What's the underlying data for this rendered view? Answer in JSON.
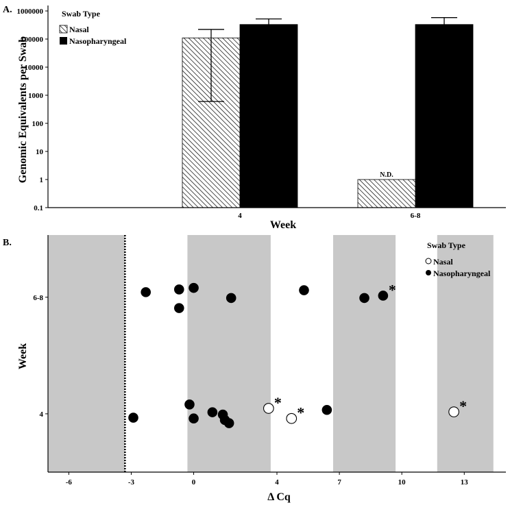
{
  "colors": {
    "bar_black": "#000000",
    "hatch": "#000000",
    "band": "#c8c8c8",
    "marker_face_nasal": "#ffffff",
    "marker_face_np": "#000000"
  },
  "chart_data": [
    {
      "type": "bar",
      "panel_label": "A.",
      "xlabel": "Week",
      "ylabel": "Genomic Equivalents per Swab",
      "yscale": "log",
      "ylim": [
        0.1,
        1000000
      ],
      "yticks": [
        "0.1",
        "1",
        "10",
        "100",
        "1000",
        "10000",
        "100000",
        "1000000"
      ],
      "categories": [
        "4",
        "6-8"
      ],
      "legend": {
        "title": "Swab Type",
        "position": "top-left"
      },
      "series": [
        {
          "name": "Nasal",
          "style": "hatched",
          "values": [
            110000,
            1
          ],
          "error_high": [
            220000,
            null
          ],
          "error_low": [
            600,
            null
          ],
          "labels": [
            "",
            "N.D."
          ]
        },
        {
          "name": "Nasopharyngeal",
          "style": "solid",
          "values": [
            330000,
            330000
          ],
          "error_high": [
            520000,
            580000
          ],
          "error_low": [
            null,
            null
          ],
          "labels": [
            "",
            ""
          ]
        }
      ]
    },
    {
      "type": "scatter",
      "panel_label": "B.",
      "xlabel": "Δ Cq",
      "ylabel": "Week",
      "xlim": [
        -7,
        15
      ],
      "xticks": [
        "-6",
        "-3",
        "0",
        "4",
        "7",
        "10",
        "13"
      ],
      "categories": [
        "4",
        "6-8"
      ],
      "shaded_bands": [
        [
          -7,
          -3.3
        ],
        [
          -0.3,
          3.7
        ],
        [
          6.7,
          9.7
        ],
        [
          11.7,
          14.4
        ]
      ],
      "reference_line_x": -3.3,
      "legend": {
        "title": "Swab Type",
        "position": "top-right"
      },
      "series": [
        {
          "name": "Nasal",
          "marker": "open-circle",
          "points": [
            {
              "x": 3.6,
              "y": 4.14,
              "flag": "*"
            },
            {
              "x": 4.7,
              "y": 3.88,
              "flag": "*"
            },
            {
              "x": 12.5,
              "y": 4.05,
              "flag": "*"
            }
          ]
        },
        {
          "name": "Nasopharyngeal",
          "marker": "filled-circle",
          "points": [
            {
              "x": -2.3,
              "y": 7.13,
              "flag": ""
            },
            {
              "x": -0.7,
              "y": 7.2,
              "flag": ""
            },
            {
              "x": 0.0,
              "y": 7.24,
              "flag": ""
            },
            {
              "x": -0.7,
              "y": 6.72,
              "flag": ""
            },
            {
              "x": 1.8,
              "y": 6.98,
              "flag": ""
            },
            {
              "x": 5.3,
              "y": 7.18,
              "flag": ""
            },
            {
              "x": 8.2,
              "y": 6.98,
              "flag": ""
            },
            {
              "x": 9.1,
              "y": 7.04,
              "flag": "*"
            },
            {
              "x": -0.2,
              "y": 4.24,
              "flag": ""
            },
            {
              "x": 0.9,
              "y": 4.04,
              "flag": ""
            },
            {
              "x": 1.4,
              "y": 3.98,
              "flag": ""
            },
            {
              "x": 1.5,
              "y": 3.84,
              "flag": ""
            },
            {
              "x": 1.7,
              "y": 3.76,
              "flag": ""
            },
            {
              "x": 0.0,
              "y": 3.88,
              "flag": ""
            },
            {
              "x": -2.9,
              "y": 3.9,
              "flag": ""
            },
            {
              "x": 6.4,
              "y": 4.1,
              "flag": ""
            }
          ]
        }
      ]
    }
  ]
}
